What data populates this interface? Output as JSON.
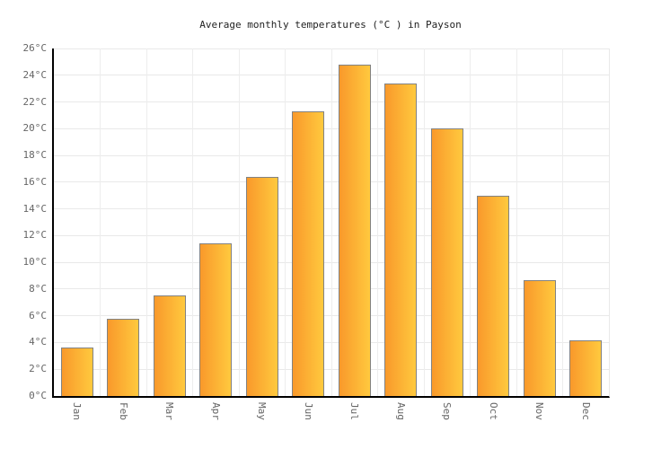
{
  "chart_data": {
    "type": "bar",
    "title": "Average monthly temperatures (°C ) in Payson",
    "categories": [
      "Jan",
      "Feb",
      "Mar",
      "Apr",
      "May",
      "Jun",
      "Jul",
      "Aug",
      "Sep",
      "Oct",
      "Nov",
      "Dec"
    ],
    "values": [
      3.6,
      5.8,
      7.5,
      11.4,
      16.4,
      21.3,
      24.8,
      23.4,
      20,
      15,
      8.7,
      4.2
    ],
    "xlabel": "",
    "ylabel": "",
    "ylim": [
      0,
      26
    ],
    "ytick_step": 2,
    "yticks": [
      "0°C",
      "2°C",
      "4°C",
      "6°C",
      "8°C",
      "10°C",
      "12°C",
      "14°C",
      "16°C",
      "18°C",
      "20°C",
      "22°C",
      "24°C",
      "26°C"
    ],
    "grid": true,
    "legend": "none",
    "colors": {
      "bar_gradient_left": "#F9992B",
      "bar_gradient_right": "#FFC93E",
      "bar_border": "#828282",
      "axis": "#000000",
      "grid_line": "#e9e9e9",
      "tick_label": "#666666",
      "title_text": "#222222"
    }
  }
}
